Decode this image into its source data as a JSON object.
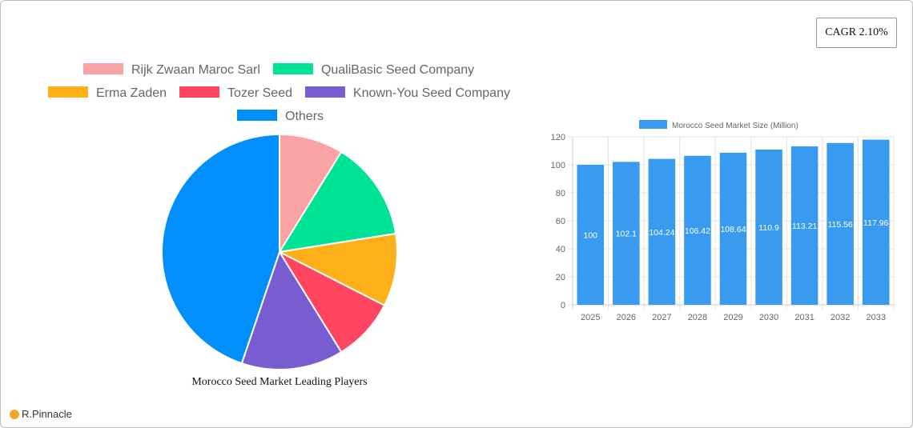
{
  "cagr_label": "CAGR 2.10%",
  "brand": "R.Pinnacle",
  "chart_data": [
    {
      "type": "pie",
      "title": "Morocco Seed Market Leading Players",
      "legend_position": "top",
      "categories": [
        "Rijk Zwaan Maroc Sarl",
        "QualiBasic Seed Company",
        "Erma Zaden",
        "Tozer Seed",
        "Known-You Seed Company",
        "Others"
      ],
      "values": [
        8.8,
        13.7,
        10.0,
        8.7,
        14.0,
        44.8
      ],
      "colors": [
        "#f9a3a4",
        "#00e396",
        "#feb019",
        "#ff4560",
        "#775dd0",
        "#008ffb"
      ]
    },
    {
      "type": "bar",
      "legend": "Morocco Seed Market Size (Million)",
      "legend_position": "top",
      "categories": [
        "2025",
        "2026",
        "2027",
        "2028",
        "2029",
        "2030",
        "2031",
        "2032",
        "2033"
      ],
      "values": [
        100,
        102.1,
        104.24,
        106.42,
        108.64,
        110.9,
        113.21,
        115.56,
        117.96
      ],
      "data_labels": [
        "100",
        "102.1",
        "104.24",
        "106.42",
        "108.64",
        "110.9",
        "113.21",
        "115.56",
        "117.96"
      ],
      "ylim": [
        0,
        120
      ],
      "yticks": [
        "0",
        "20",
        "40",
        "60",
        "80",
        "100",
        "120"
      ],
      "grid": true,
      "color": "#399bef"
    }
  ]
}
